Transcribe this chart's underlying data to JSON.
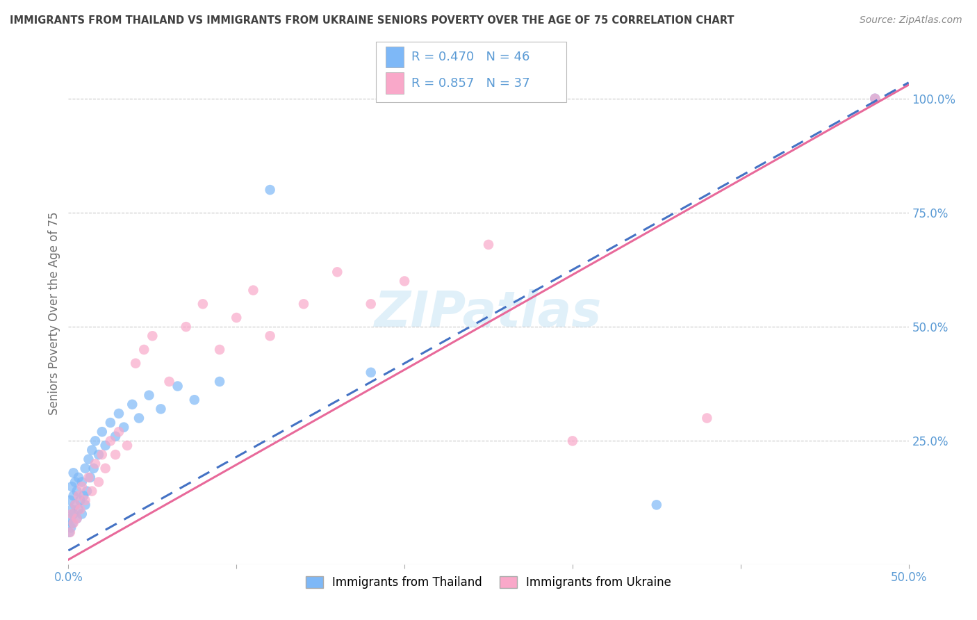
{
  "title": "IMMIGRANTS FROM THAILAND VS IMMIGRANTS FROM UKRAINE SENIORS POVERTY OVER THE AGE OF 75 CORRELATION CHART",
  "source": "Source: ZipAtlas.com",
  "ylabel": "Seniors Poverty Over the Age of 75",
  "xlim": [
    0.0,
    0.5
  ],
  "ylim": [
    -0.02,
    1.08
  ],
  "legend_label1": "Immigrants from Thailand",
  "legend_label2": "Immigrants from Ukraine",
  "color_thailand": "#7EB8F7",
  "color_ukraine": "#F9A8C9",
  "color_regression_thailand": "#4472C4",
  "color_regression_ukraine": "#E8699A",
  "R_thailand": 0.47,
  "N_thailand": 46,
  "R_ukraine": 0.857,
  "N_ukraine": 37,
  "background_color": "#ffffff",
  "grid_color": "#c8c8c8",
  "title_color": "#404040",
  "axis_label_color": "#707070",
  "th_x": [
    0.0005,
    0.001,
    0.001,
    0.0015,
    0.002,
    0.002,
    0.0025,
    0.003,
    0.003,
    0.003,
    0.004,
    0.004,
    0.005,
    0.005,
    0.006,
    0.006,
    0.007,
    0.008,
    0.008,
    0.009,
    0.01,
    0.01,
    0.011,
    0.012,
    0.013,
    0.014,
    0.015,
    0.016,
    0.018,
    0.02,
    0.022,
    0.025,
    0.028,
    0.03,
    0.033,
    0.038,
    0.042,
    0.048,
    0.055,
    0.065,
    0.075,
    0.09,
    0.12,
    0.18,
    0.35,
    0.48
  ],
  "th_y": [
    0.05,
    0.08,
    0.12,
    0.06,
    0.1,
    0.15,
    0.07,
    0.09,
    0.13,
    0.18,
    0.11,
    0.16,
    0.08,
    0.14,
    0.1,
    0.17,
    0.12,
    0.09,
    0.16,
    0.13,
    0.11,
    0.19,
    0.14,
    0.21,
    0.17,
    0.23,
    0.19,
    0.25,
    0.22,
    0.27,
    0.24,
    0.29,
    0.26,
    0.31,
    0.28,
    0.33,
    0.3,
    0.35,
    0.32,
    0.37,
    0.34,
    0.38,
    0.8,
    0.4,
    0.11,
    1.0
  ],
  "uk_x": [
    0.001,
    0.002,
    0.003,
    0.004,
    0.005,
    0.006,
    0.007,
    0.008,
    0.01,
    0.012,
    0.014,
    0.016,
    0.018,
    0.02,
    0.022,
    0.025,
    0.028,
    0.03,
    0.035,
    0.04,
    0.045,
    0.05,
    0.06,
    0.07,
    0.08,
    0.09,
    0.1,
    0.11,
    0.12,
    0.14,
    0.16,
    0.18,
    0.2,
    0.25,
    0.3,
    0.38,
    0.48
  ],
  "uk_y": [
    0.05,
    0.09,
    0.07,
    0.11,
    0.08,
    0.13,
    0.1,
    0.15,
    0.12,
    0.17,
    0.14,
    0.2,
    0.16,
    0.22,
    0.19,
    0.25,
    0.22,
    0.27,
    0.24,
    0.42,
    0.45,
    0.48,
    0.38,
    0.5,
    0.55,
    0.45,
    0.52,
    0.58,
    0.48,
    0.55,
    0.62,
    0.55,
    0.6,
    0.68,
    0.25,
    0.3,
    1.0
  ]
}
